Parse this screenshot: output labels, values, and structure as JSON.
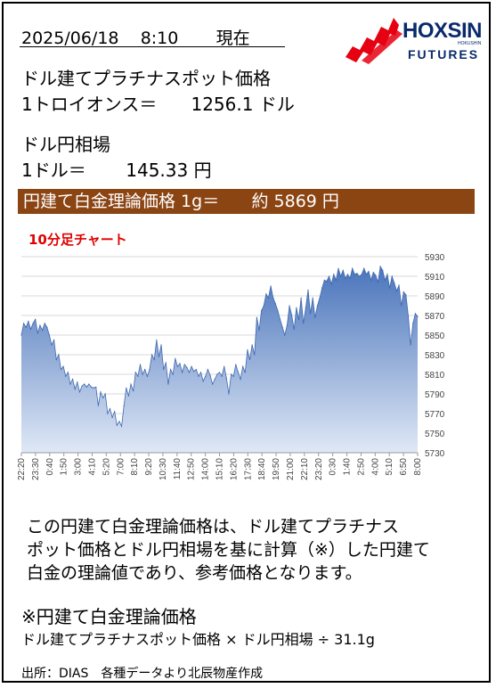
{
  "header": {
    "date": "2025/06/18",
    "time": "8:10",
    "status": "現在"
  },
  "logo": {
    "name": "HOXSIN",
    "sub": "FUTURES",
    "tag": "HOKUSHIN",
    "accent": "#e60012",
    "navy": "#0a2a6b"
  },
  "platinum": {
    "label": "ドル建てプラチナスポット価格",
    "unit_prefix": "1トロイオンス＝",
    "value": "1256.1",
    "unit_suffix": "ドル"
  },
  "fx": {
    "label": "ドル円相場",
    "unit_prefix": "1ドル＝",
    "value": "145.33",
    "unit_suffix": "円"
  },
  "banner": {
    "label": "円建て白金理論価格 1g＝",
    "approx": "約",
    "value": "5869",
    "unit": "円",
    "color": "#8b4513"
  },
  "chart_title": "10分足チャート",
  "chart_data": {
    "type": "area",
    "title": "",
    "xlabel": "",
    "ylabel": "",
    "ylim": [
      5730,
      5930
    ],
    "yticks": [
      5730,
      5750,
      5770,
      5790,
      5810,
      5830,
      5850,
      5870,
      5890,
      5910,
      5930
    ],
    "xtick_labels": [
      "22:20",
      "23:30",
      "0:40",
      "1:50",
      "3:00",
      "4:10",
      "5:20",
      "7:00",
      "8:10",
      "9:20",
      "10:30",
      "11:40",
      "12:50",
      "14:00",
      "15:10",
      "16:20",
      "17:30",
      "18:40",
      "19:50",
      "21:00",
      "22:10",
      "23:20",
      "0:30",
      "1:40",
      "2:50",
      "4:00",
      "5:10",
      "6:50",
      "8:00"
    ],
    "values": [
      5850,
      5862,
      5858,
      5864,
      5856,
      5862,
      5866,
      5852,
      5860,
      5855,
      5862,
      5858,
      5850,
      5840,
      5845,
      5825,
      5830,
      5815,
      5818,
      5808,
      5812,
      5800,
      5805,
      5795,
      5802,
      5792,
      5798,
      5800,
      5797,
      5800,
      5797,
      5796,
      5797,
      5778,
      5792,
      5786,
      5790,
      5770,
      5775,
      5766,
      5772,
      5758,
      5762,
      5757,
      5778,
      5796,
      5788,
      5800,
      5793,
      5812,
      5808,
      5820,
      5810,
      5815,
      5808,
      5815,
      5830,
      5825,
      5845,
      5828,
      5840,
      5815,
      5822,
      5800,
      5815,
      5810,
      5826,
      5818,
      5821,
      5812,
      5820,
      5817,
      5812,
      5818,
      5813,
      5815,
      5808,
      5812,
      5803,
      5808,
      5815,
      5809,
      5800,
      5805,
      5810,
      5812,
      5808,
      5818,
      5806,
      5790,
      5810,
      5808,
      5820,
      5812,
      5805,
      5818,
      5812,
      5835,
      5825,
      5840,
      5830,
      5868,
      5855,
      5875,
      5880,
      5892,
      5888,
      5900,
      5888,
      5882,
      5875,
      5866,
      5858,
      5850,
      5860,
      5880,
      5870,
      5856,
      5878,
      5866,
      5888,
      5862,
      5878,
      5896,
      5872,
      5888,
      5868,
      5880,
      5888,
      5898,
      5906,
      5905,
      5910,
      5902,
      5912,
      5906,
      5918,
      5910,
      5916,
      5908,
      5912,
      5908,
      5918,
      5912,
      5913,
      5910,
      5912,
      5918,
      5912,
      5915,
      5906,
      5914,
      5911,
      5904,
      5920,
      5916,
      5906,
      5912,
      5898,
      5910,
      5903,
      5895,
      5901,
      5880,
      5894,
      5891,
      5869,
      5840,
      5862,
      5872,
      5869
    ],
    "fill_color": "#5b86c9",
    "grid": true
  },
  "explanation": {
    "line1": "この円建て白金理論価格は、ドル建てプラチナス",
    "line2": "ポット価格とドル円相場を基に計算（※）した円建て",
    "line3": "白金の理論値であり、参考価格となります。"
  },
  "formula": {
    "title": "※円建て白金理論価格",
    "expression": "ドル建てプラチナスポット価格 × ドル円相場 ÷ 31.1g"
  },
  "source": "出所：DIAS　各種データより北辰物産作成"
}
